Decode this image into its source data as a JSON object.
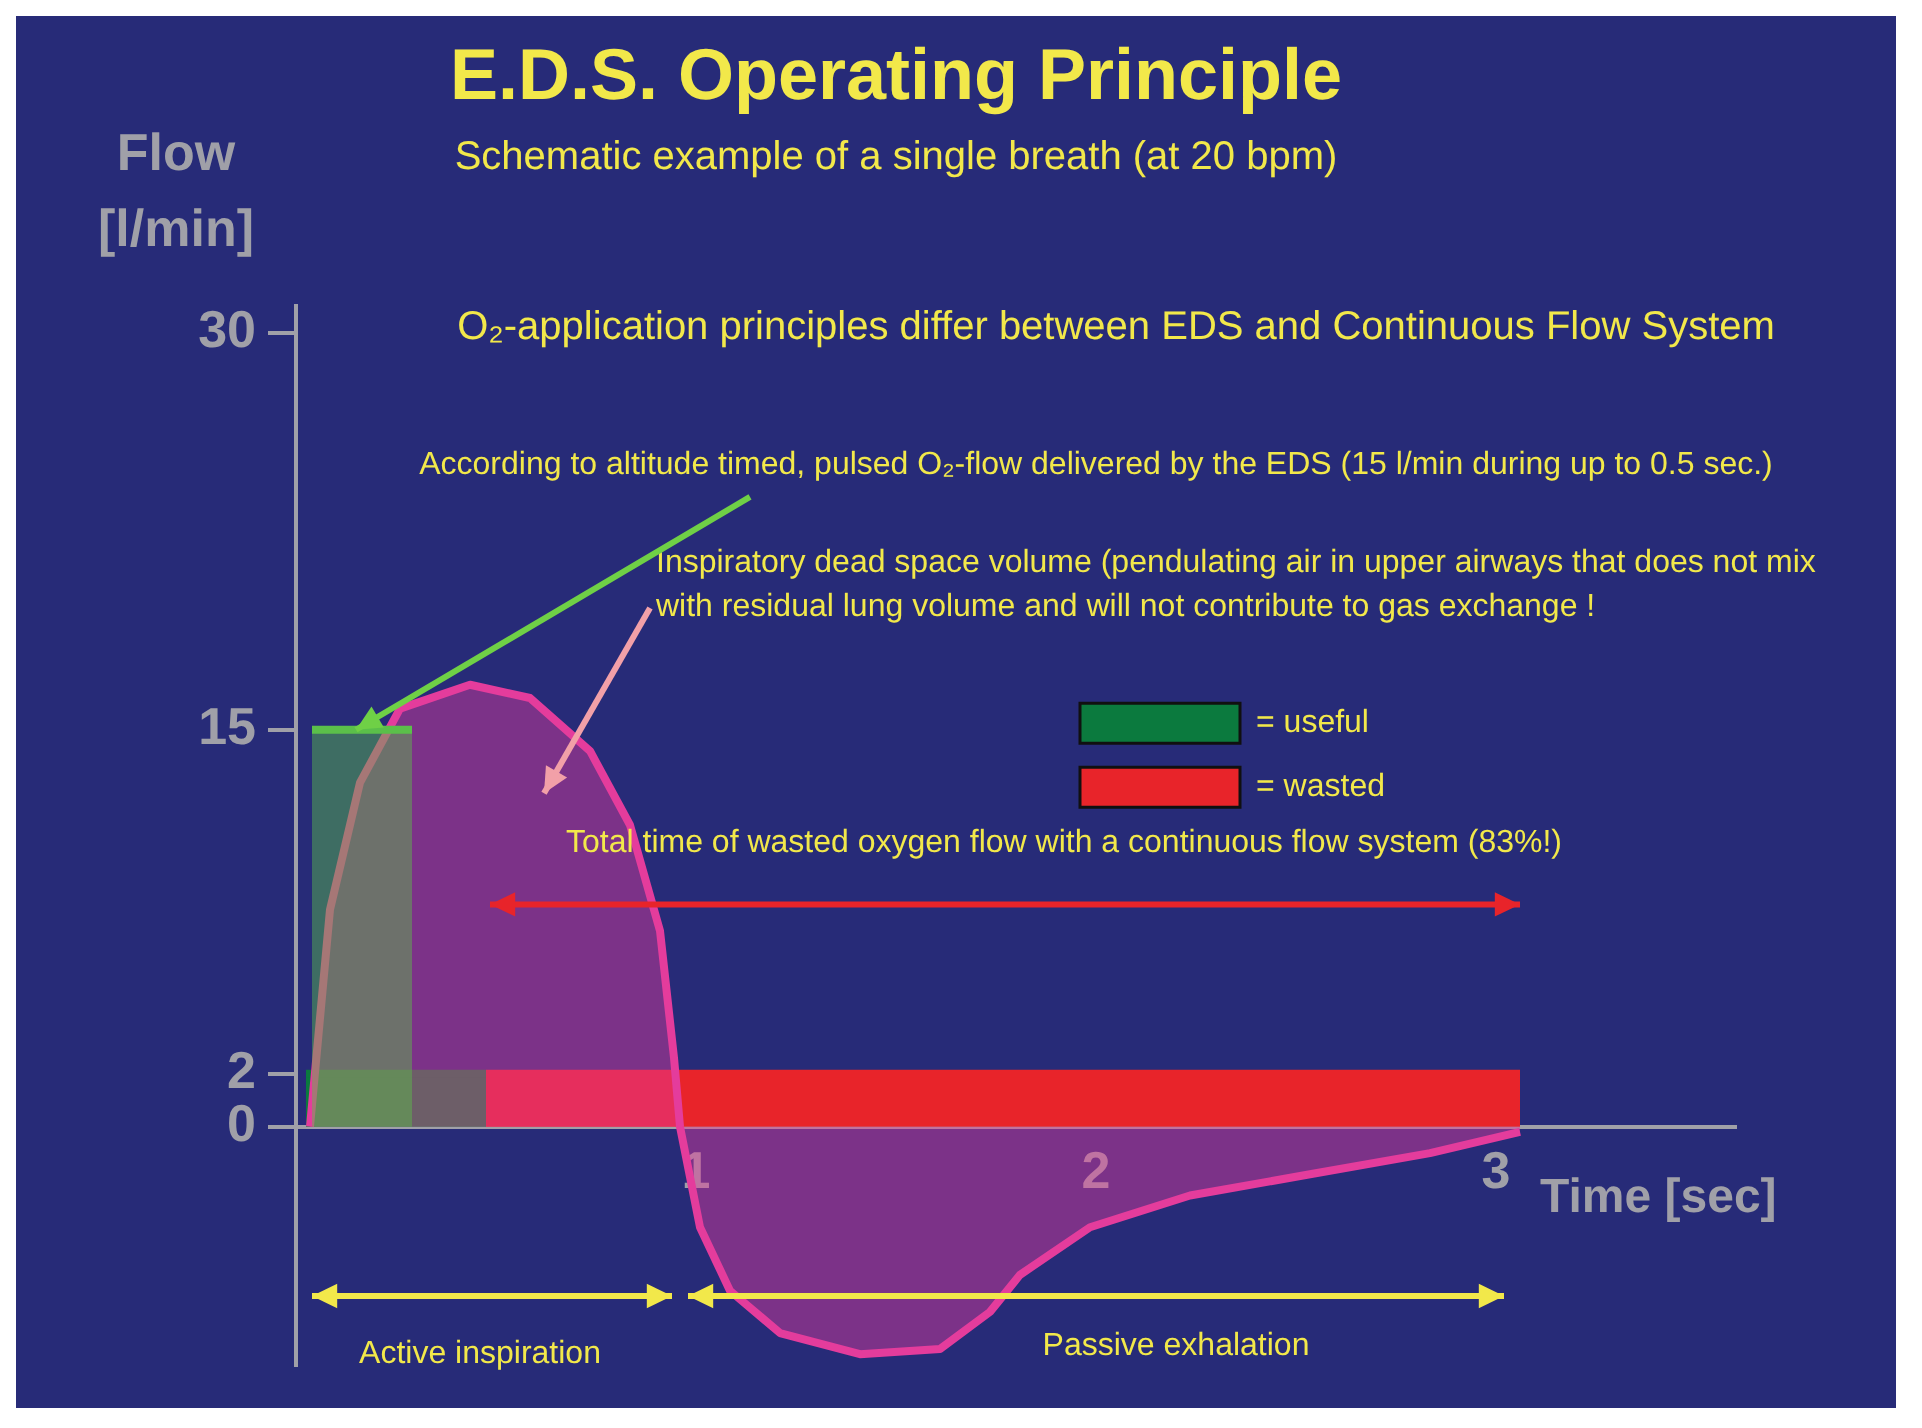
{
  "chart_data": {
    "type": "line",
    "title": "E.D.S. Operating Principle",
    "subtitle": "Schematic example of a single breath (at 20 bpm)",
    "xlabel": "Time [sec]",
    "ylabel": "Flow [l/min]",
    "xlim": [
      0,
      3.6
    ],
    "ylim": [
      -9,
      31
    ],
    "xticks": [
      1,
      2,
      3
    ],
    "yticks": [
      0,
      2,
      15,
      30
    ],
    "grid": false,
    "legend": "top right",
    "marker": "none",
    "annotations": [
      "O₂-application principles differ between EDS and Continuous Flow System",
      {
        "text": "According to altitude timed, pulsed O₂-flow delivered by the EDS (15 l/min during up to 0.5 sec.)",
        "x": 0.15,
        "y": 15
      },
      "Inspiratory dead space volume (pendulating air in upper airways that does not mix with residual lung volume and will not contribute to gas exchange !",
      "Total time of wasted oxygen flow with a continuous flow system (83%!)",
      "Active inspiration",
      "Passive exhalation"
    ],
    "series": [
      {
        "type": "area",
        "color": "#5bbf4a",
        "x": [
          0.04,
          0.29
        ],
        "values": [
          15,
          15
        ]
      },
      {
        "type": "area",
        "color": "#e43c9c",
        "x": [
          0.035,
          0.085,
          0.16,
          0.26,
          0.435,
          0.585,
          0.735,
          0.835,
          0.91,
          0.945,
          0.96,
          1.01,
          1.085,
          1.21,
          1.41,
          1.61,
          1.735,
          1.81,
          1.985,
          2.235,
          2.535,
          2.835,
          3.06
        ],
        "values": [
          0,
          8.2,
          13,
          15.8,
          16.7,
          16.2,
          14.2,
          11.4,
          7.4,
          2.6,
          0,
          -3.8,
          -6.2,
          -7.8,
          -8.6,
          -8.4,
          -7,
          -5.6,
          -3.8,
          -2.6,
          -1.8,
          -1,
          -0.2
        ]
      },
      {
        "type": "area",
        "name": "= useful",
        "color": "#0b7a3e",
        "x": [
          0.025,
          0.475
        ],
        "values": [
          2,
          2
        ]
      },
      {
        "type": "area",
        "name": "= wasted",
        "color": "#e8242a",
        "x": [
          0.475,
          3.06
        ],
        "values": [
          2,
          2
        ]
      }
    ]
  }
}
